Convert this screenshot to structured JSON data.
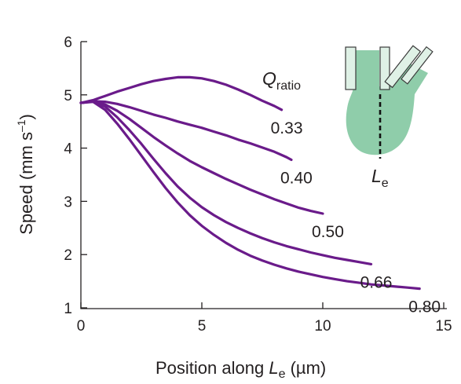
{
  "chart_data": {
    "type": "line",
    "xlabel_prefix": "Position along ",
    "xlabel_var": "L",
    "xlabel_sub": "e",
    "xlabel_suffix": " (µm)",
    "ylabel_main": "Speed (mm s",
    "ylabel_sup": "–1",
    "ylabel_close": ")",
    "xlim": [
      0,
      15
    ],
    "ylim": [
      1,
      6
    ],
    "xticks": [
      "0",
      "5",
      "10",
      "15"
    ],
    "yticks": [
      "1",
      "2",
      "3",
      "4",
      "5",
      "6"
    ],
    "legend_var": "Q",
    "legend_sub": "ratio",
    "line_color": "#6a1b8a",
    "series": [
      {
        "name": "0.33",
        "x": [
          0,
          0.5,
          1,
          1.5,
          2,
          2.5,
          3,
          3.5,
          4,
          4.5,
          5,
          5.5,
          6,
          6.5,
          7,
          7.5,
          8,
          8.3
        ],
        "y": [
          4.85,
          4.9,
          4.98,
          5.06,
          5.13,
          5.2,
          5.26,
          5.3,
          5.33,
          5.33,
          5.31,
          5.26,
          5.19,
          5.1,
          5.0,
          4.89,
          4.79,
          4.72
        ]
      },
      {
        "name": "0.40",
        "x": [
          0,
          0.5,
          1,
          1.5,
          2,
          2.5,
          3,
          3.5,
          4,
          4.5,
          5,
          5.5,
          6,
          6.5,
          7,
          7.5,
          8,
          8.5,
          8.7
        ],
        "y": [
          4.85,
          4.88,
          4.87,
          4.83,
          4.77,
          4.7,
          4.63,
          4.57,
          4.5,
          4.44,
          4.38,
          4.31,
          4.24,
          4.16,
          4.09,
          4.01,
          3.93,
          3.83,
          3.78
        ]
      },
      {
        "name": "0.50",
        "x": [
          0,
          0.5,
          1,
          1.5,
          2,
          2.5,
          3,
          3.5,
          4,
          4.5,
          5,
          5.5,
          6,
          6.5,
          7,
          7.5,
          8,
          8.5,
          9,
          9.5,
          10
        ],
        "y": [
          4.85,
          4.88,
          4.82,
          4.7,
          4.55,
          4.38,
          4.21,
          4.05,
          3.9,
          3.76,
          3.64,
          3.53,
          3.42,
          3.32,
          3.22,
          3.13,
          3.04,
          2.96,
          2.88,
          2.82,
          2.77
        ]
      },
      {
        "name": "0.66",
        "x": [
          0,
          0.5,
          1,
          1.5,
          2,
          2.5,
          3,
          3.5,
          4,
          4.5,
          5,
          5.5,
          6,
          6.5,
          7,
          7.5,
          8,
          8.5,
          9,
          9.5,
          10,
          10.5,
          11,
          11.5,
          12
        ],
        "y": [
          4.85,
          4.88,
          4.78,
          4.58,
          4.34,
          4.08,
          3.8,
          3.53,
          3.28,
          3.07,
          2.89,
          2.74,
          2.61,
          2.5,
          2.4,
          2.31,
          2.23,
          2.16,
          2.1,
          2.04,
          1.99,
          1.94,
          1.9,
          1.86,
          1.82
        ]
      },
      {
        "name": "0.80",
        "x": [
          0,
          0.5,
          1,
          1.5,
          2,
          2.5,
          3,
          3.5,
          4,
          4.5,
          5,
          5.5,
          6,
          6.5,
          7,
          7.5,
          8,
          8.5,
          9,
          9.5,
          10,
          10.5,
          11,
          11.5,
          12,
          12.5,
          13,
          13.5,
          14
        ],
        "y": [
          4.85,
          4.87,
          4.72,
          4.46,
          4.17,
          3.86,
          3.55,
          3.25,
          2.98,
          2.74,
          2.54,
          2.37,
          2.22,
          2.09,
          1.98,
          1.89,
          1.81,
          1.74,
          1.68,
          1.63,
          1.58,
          1.54,
          1.5,
          1.47,
          1.44,
          1.42,
          1.4,
          1.38,
          1.36
        ]
      }
    ]
  },
  "inset": {
    "label_var": "L",
    "label_sub": "e",
    "fill_color": "#8fcdaa",
    "tube_fill": "#dff1e6",
    "outline_color": "#3b3b3b"
  }
}
